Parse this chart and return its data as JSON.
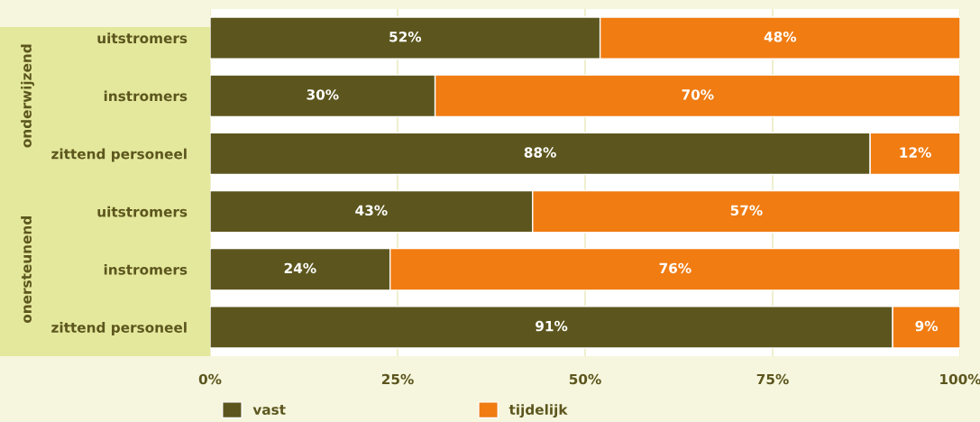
{
  "chart_data": {
    "type": "bar",
    "orientation": "horizontal",
    "stacked": true,
    "categories": [
      "uitstromers",
      "instromers",
      "zittend personeel",
      "uitstromers",
      "instromers",
      "zittend personeel"
    ],
    "series": [
      {
        "name": "vast",
        "color": "#5c561e",
        "values": [
          52,
          30,
          88,
          43,
          24,
          91
        ],
        "value_labels": [
          "52%",
          "30%",
          "88%",
          "43%",
          "24%",
          "91%"
        ]
      },
      {
        "name": "tijdelijk",
        "color": "#f07c12",
        "values": [
          48,
          70,
          12,
          57,
          76,
          9
        ],
        "value_labels": [
          "48%",
          "70%",
          "12%",
          "57%",
          "76%",
          "9%"
        ]
      }
    ],
    "xlim": [
      0,
      100
    ],
    "xticks": [
      {
        "value": 0,
        "label": "0%"
      },
      {
        "value": 25,
        "label": "25%"
      },
      {
        "value": 50,
        "label": "50%"
      },
      {
        "value": 75,
        "label": "75%"
      },
      {
        "value": 100,
        "label": "100%"
      }
    ],
    "grid": "x",
    "legend": "bottom",
    "annotations": [
      "onderwijzend",
      "onersteunend"
    ]
  }
}
